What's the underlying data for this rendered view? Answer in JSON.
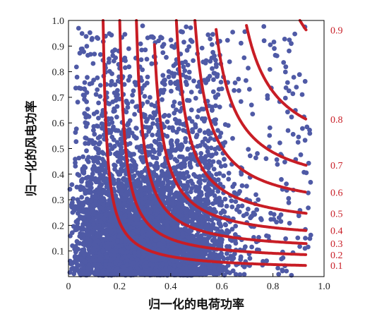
{
  "chart_data": {
    "type": "scatter",
    "xlabel": "归一化的电荷功率",
    "ylabel": "归一化的风电功率",
    "xlim": [
      0,
      1.0
    ],
    "ylim": [
      0,
      1.0
    ],
    "xticks": [
      "0",
      "0.2",
      "0.4",
      "0.6",
      "0.8",
      "1.0"
    ],
    "yticks": [
      "0.1",
      "0.2",
      "0.3",
      "0.4",
      "0.5",
      "0.6",
      "0.7",
      "0.8",
      "0.9",
      "1.0"
    ],
    "grid": false,
    "scatter_color": "#4f5aa6",
    "contour_color": "#c81d25",
    "scatter_description": "dense cloud of several thousand points, densest near x 0.05-0.55 and y 0-0.5, thinning toward upper-right",
    "contours": [
      {
        "label": "0.9",
        "x_asymptote": 0.68,
        "y_asymptote": 0.618
      },
      {
        "label": "0.8",
        "x_asymptote": 0.58,
        "y_asymptote": 0.432
      },
      {
        "label": "0.7",
        "x_asymptote": 0.5,
        "y_asymptote": 0.318
      },
      {
        "label": "0.6",
        "x_asymptote": 0.44,
        "y_asymptote": 0.245
      },
      {
        "label": "0.5",
        "x_asymptote": 0.38,
        "y_asymptote": 0.185
      },
      {
        "label": "0.4",
        "x_asymptote": 0.3,
        "y_asymptote": 0.135
      },
      {
        "label": "0.3",
        "x_asymptote": 0.24,
        "y_asymptote": 0.095
      },
      {
        "label": "0.2",
        "x_asymptote": 0.18,
        "y_asymptote": 0.06
      },
      {
        "label": "0.1",
        "x_asymptote": 0.12,
        "y_asymptote": 0.025
      }
    ]
  }
}
